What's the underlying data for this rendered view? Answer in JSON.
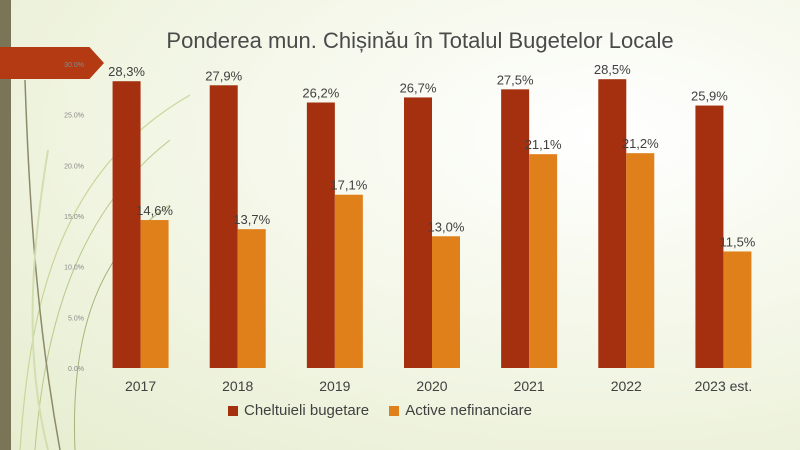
{
  "chart_data": {
    "type": "bar",
    "title": "Ponderea mun. Chișinău în Totalul Bugetelor Locale",
    "categories": [
      "2017",
      "2018",
      "2019",
      "2020",
      "2021",
      "2022",
      "2023 est."
    ],
    "series": [
      {
        "name": "Cheltuieli bugetare",
        "color": "#a5300f",
        "values": [
          28.3,
          27.9,
          26.2,
          26.7,
          27.5,
          28.5,
          25.9
        ],
        "labels": [
          "28,3%",
          "27,9%",
          "26,2%",
          "26,7%",
          "27,5%",
          "28,5%",
          "25,9%"
        ]
      },
      {
        "name": "Active nefinanciare",
        "color": "#e0801a",
        "values": [
          14.6,
          13.7,
          17.1,
          13.0,
          21.1,
          21.2,
          11.5
        ],
        "labels": [
          "14,6%",
          "13,7%",
          "17,1%",
          "13,0%",
          "21,1%",
          "21,2%",
          "11,5%"
        ]
      }
    ],
    "yticks": [
      "0.0%",
      "5.0%",
      "10.0%",
      "15.0%",
      "20.0%",
      "25.0%",
      "30.0%"
    ],
    "ylim": [
      0,
      30
    ],
    "grid": false,
    "legend_position": "bottom"
  }
}
